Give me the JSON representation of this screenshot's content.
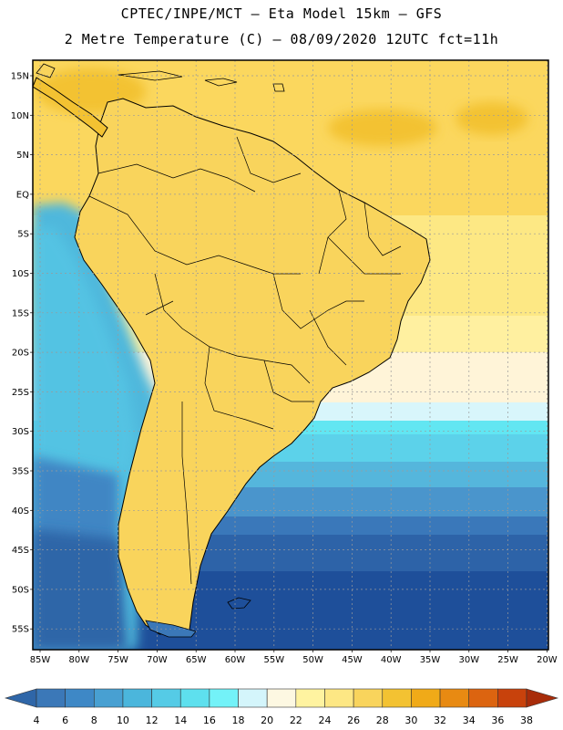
{
  "header": {
    "line1": "CPTEC/INPE/MCT –  Eta Model 15km – GFS",
    "line2": "2 Metre Temperature (C) – 08/09/2020 12UTC fct=11h"
  },
  "map": {
    "lat_labels": [
      "15N",
      "10N",
      "5N",
      "EQ",
      "5S",
      "10S",
      "15S",
      "20S",
      "25S",
      "30S",
      "35S",
      "40S",
      "45S",
      "50S",
      "55S"
    ],
    "lon_labels": [
      "85W",
      "80W",
      "75W",
      "70W",
      "65W",
      "60W",
      "55W",
      "50W",
      "45W",
      "40W",
      "35W",
      "30W",
      "25W",
      "20W"
    ]
  },
  "legend": {
    "labels": [
      "4",
      "6",
      "8",
      "10",
      "12",
      "14",
      "16",
      "18",
      "20",
      "22",
      "24",
      "26",
      "28",
      "30",
      "32",
      "34",
      "36",
      "38"
    ],
    "colors": [
      "#2f66a8",
      "#3b78b8",
      "#3e88c6",
      "#48a0d2",
      "#4bb6dc",
      "#55cbe6",
      "#5ee0ee",
      "#73f2f8",
      "#d4f5fb",
      "#fdf8e2",
      "#fff3a0",
      "#fde784",
      "#f9d45c",
      "#f3c232",
      "#f0aa18",
      "#e88a12",
      "#dc6410",
      "#c8420c",
      "#a82c0a"
    ]
  },
  "chart_data": {
    "type": "heatmap",
    "title": "2 Metre Temperature (C) – 08/09/2020 12UTC fct=11h",
    "colorbar_range": [
      4,
      38
    ],
    "colorbar_step": 2,
    "units": "C",
    "lon_range": [
      -86,
      -19
    ],
    "lat_range": [
      -58,
      17
    ]
  }
}
